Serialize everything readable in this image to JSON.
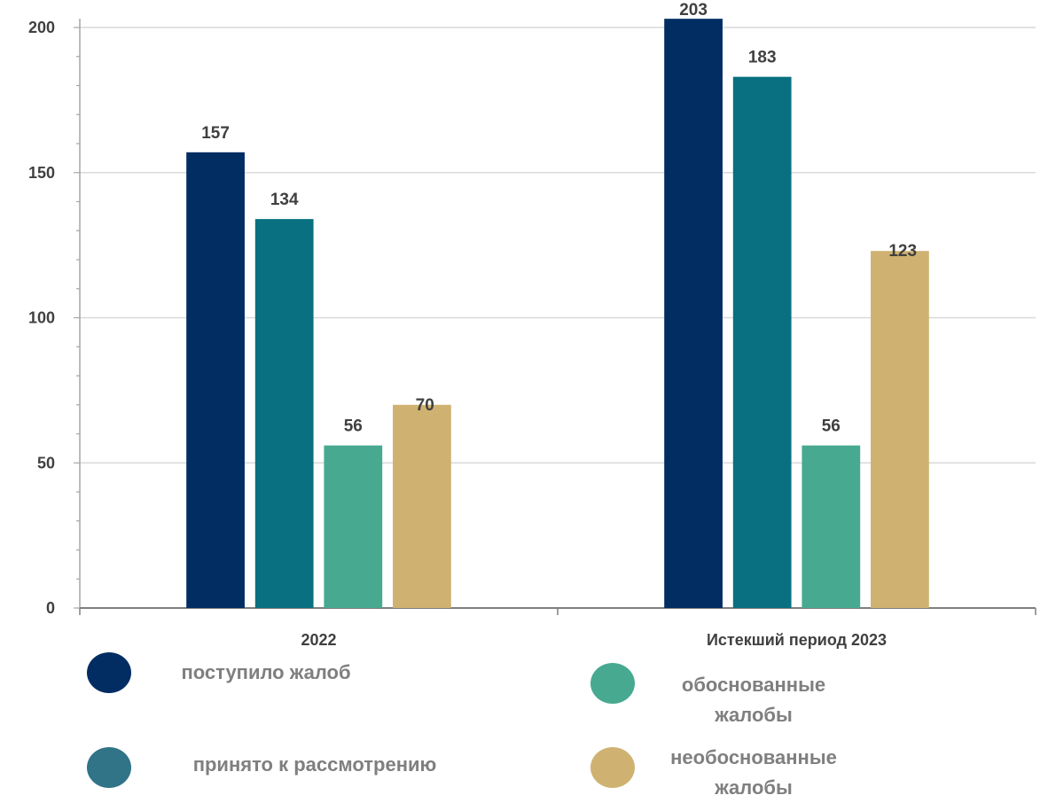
{
  "chart_data": {
    "type": "bar",
    "categories": [
      "2022",
      "Истекший период 2023"
    ],
    "series": [
      {
        "name": "поступило жалоб",
        "values": [
          157,
          203
        ],
        "color": "#022d63"
      },
      {
        "name": "принято к рассмотрению",
        "values": [
          134,
          183
        ],
        "color": "#087080"
      },
      {
        "name": "обоснованные жалобы",
        "values": [
          56,
          56
        ],
        "color": "#47a990"
      },
      {
        "name": "необоснованные жалобы",
        "values": [
          70,
          123
        ],
        "color": "#cfb271"
      }
    ],
    "ylim": [
      0,
      200
    ],
    "yticks": [
      0,
      50,
      100,
      150,
      200
    ],
    "grid": true,
    "legend_position": "bottom",
    "title": "",
    "xlabel": "",
    "ylabel": ""
  },
  "legend": {
    "items": [
      {
        "label": "поступило жалоб",
        "color": "#022d63"
      },
      {
        "label": "принято к рассмотрению",
        "color": "#317387"
      },
      {
        "label_line1": "обоснованные",
        "label_line2": "жалобы",
        "color": "#47a990"
      },
      {
        "label_line1": "необоснованные",
        "label_line2": "жалобы",
        "color": "#cfb271"
      }
    ]
  }
}
